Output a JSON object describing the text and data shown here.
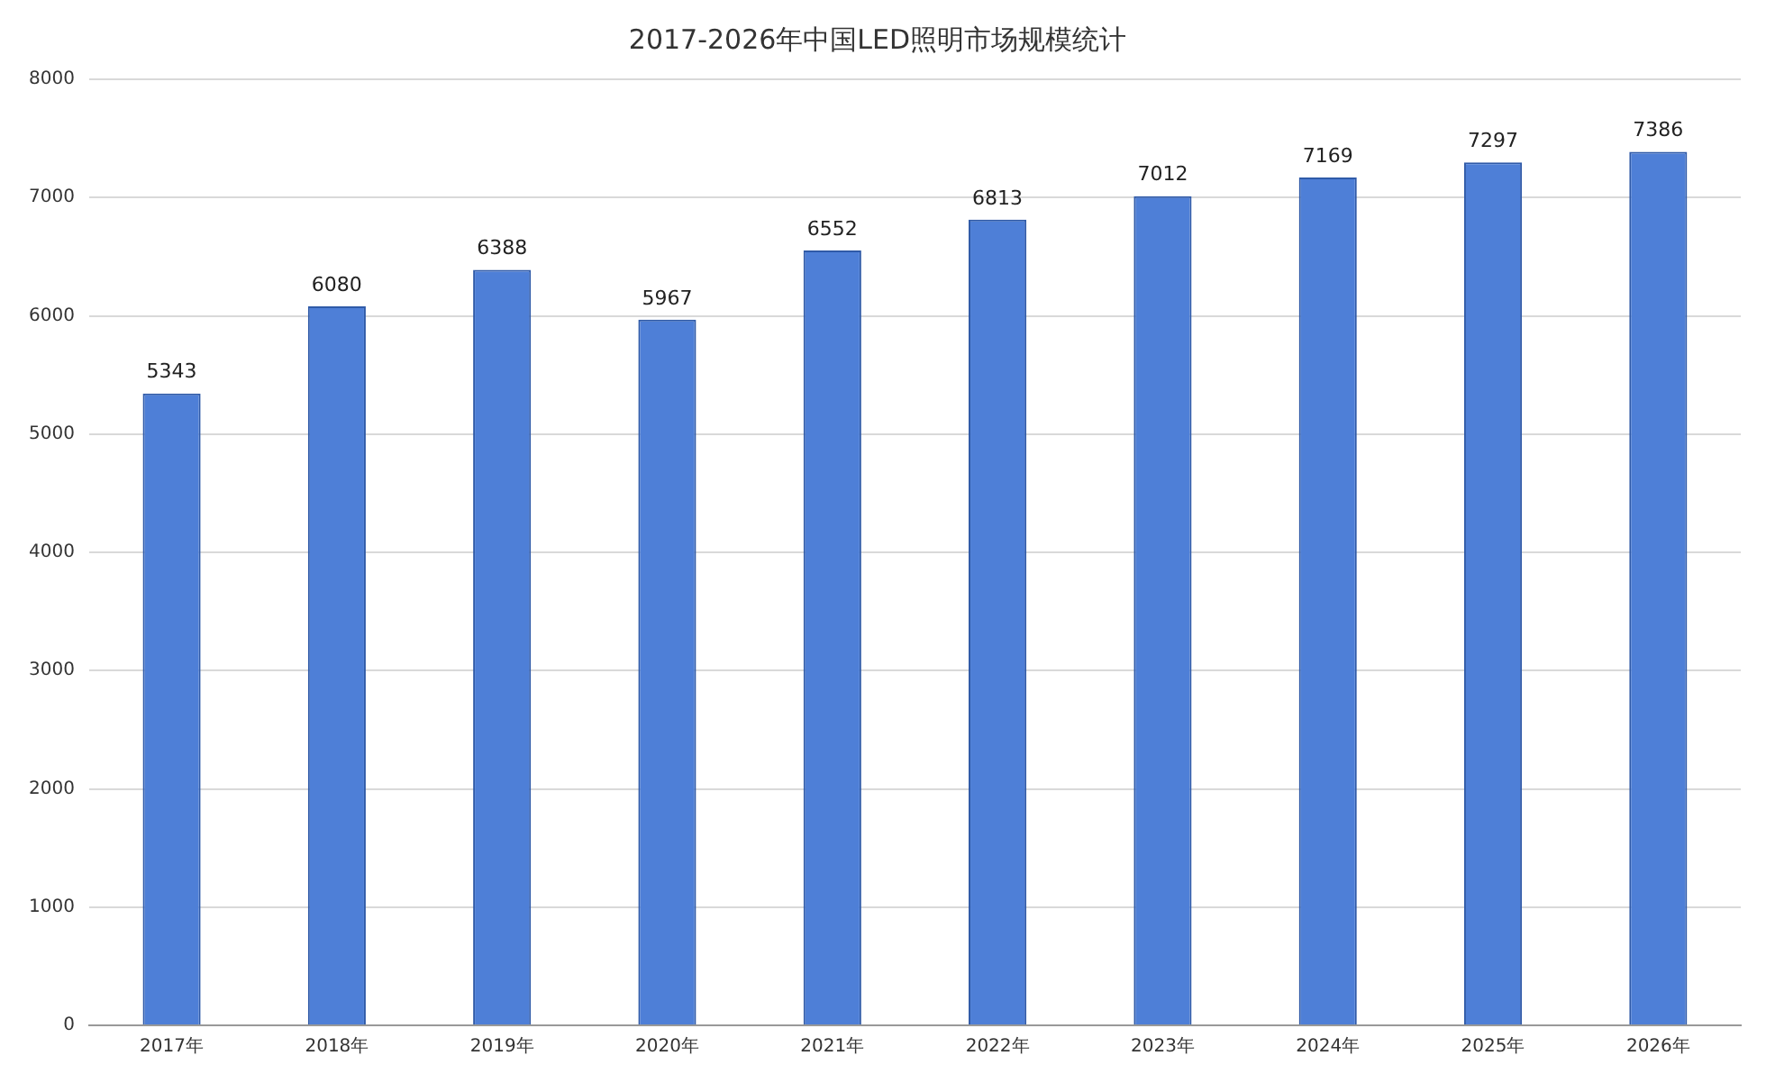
{
  "chart_data": {
    "type": "bar",
    "title": "2017-2026年中国LED照明市场规模统计",
    "categories": [
      "2017年",
      "2018年",
      "2019年",
      "2020年",
      "2021年",
      "2022年",
      "2023年",
      "2024年",
      "2025年",
      "2026年"
    ],
    "values": [
      5343,
      6080,
      6388,
      5967,
      6552,
      6813,
      7012,
      7169,
      7297,
      7386
    ],
    "color": "#4e7fd7",
    "ylim": [
      0,
      8000
    ],
    "yticks": [
      0,
      1000,
      2000,
      3000,
      4000,
      5000,
      6000,
      7000,
      8000
    ],
    "grid": "y",
    "legend": false,
    "data_labels": true
  }
}
